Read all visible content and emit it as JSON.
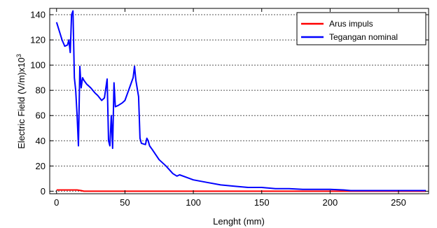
{
  "chart_data": {
    "type": "line",
    "xlabel": "Lenght (mm)",
    "ylabel_main": "Electric Field (V/m)x10",
    "ylabel_exp": "3",
    "xlim": [
      -5,
      272
    ],
    "ylim": [
      -2,
      145
    ],
    "x_ticks": [
      0,
      50,
      100,
      150,
      200,
      250
    ],
    "y_ticks": [
      0,
      20,
      40,
      60,
      80,
      100,
      120,
      140
    ],
    "grid": "horizontal-dotted",
    "legend_position": "top-right",
    "series": [
      {
        "name": "Arus impuls",
        "color": "#ff0000",
        "x": [
          0,
          5,
          10,
          15,
          18,
          20,
          50,
          100,
          150,
          200,
          215,
          270
        ],
        "y": [
          1,
          1,
          1,
          1,
          0.5,
          0,
          0,
          0,
          0,
          0,
          0,
          0
        ]
      },
      {
        "name": "Tegangan nominal",
        "color": "#0000ff",
        "x": [
          0,
          2,
          4,
          6,
          8,
          9,
          10,
          11,
          12,
          13,
          14,
          15,
          16,
          17,
          18,
          19,
          20,
          22,
          25,
          28,
          30,
          33,
          35,
          37,
          38,
          39,
          40,
          41,
          42,
          43,
          45,
          48,
          50,
          52,
          54,
          56,
          57,
          58,
          60,
          61,
          62,
          65,
          66,
          67,
          68,
          70,
          75,
          80,
          85,
          88,
          90,
          95,
          100,
          110,
          120,
          130,
          140,
          150,
          160,
          170,
          180,
          190,
          200,
          210,
          215,
          220,
          230,
          240,
          250,
          260,
          270
        ],
        "y": [
          134,
          127,
          120,
          115,
          116,
          120,
          110,
          140,
          143,
          90,
          80,
          60,
          36,
          99,
          82,
          90,
          88,
          85,
          82,
          78,
          76,
          72,
          74,
          89,
          40,
          36,
          60,
          34,
          86,
          67,
          68,
          70,
          72,
          78,
          84,
          90,
          99,
          88,
          75,
          42,
          38,
          37,
          42,
          40,
          36,
          33,
          25,
          20,
          14,
          12,
          13,
          11,
          9,
          7,
          5,
          4,
          3,
          3,
          2,
          2,
          1.5,
          1.5,
          1.5,
          1,
          0.5,
          0.5,
          0.5,
          0.5,
          0.5,
          0.5,
          0.5
        ]
      }
    ]
  }
}
